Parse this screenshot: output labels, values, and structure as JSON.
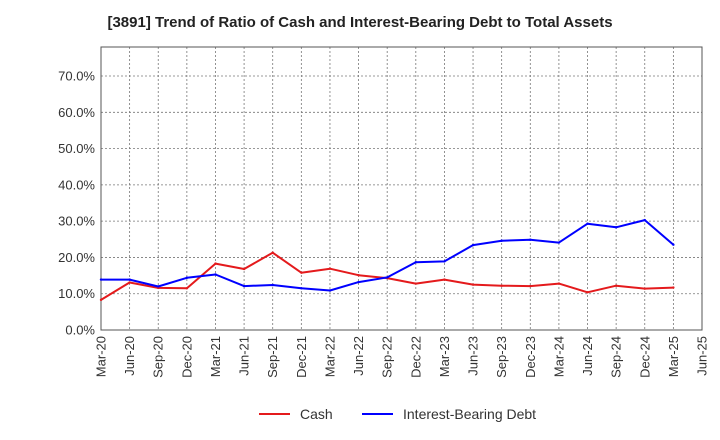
{
  "chart_data": {
    "type": "line",
    "title": "[3891]  Trend of Ratio of Cash and Interest-Bearing Debt to Total Assets",
    "xlabel": "",
    "ylabel": "",
    "x_ticks": [
      "Mar-20",
      "Jun-20",
      "Sep-20",
      "Dec-20",
      "Mar-21",
      "Jun-21",
      "Sep-21",
      "Dec-21",
      "Mar-22",
      "Jun-22",
      "Sep-22",
      "Dec-22",
      "Mar-23",
      "Jun-23",
      "Sep-23",
      "Dec-23",
      "Mar-24",
      "Jun-24",
      "Sep-24",
      "Dec-24",
      "Mar-25",
      "Jun-25"
    ],
    "y_ticks": [
      "0.0%",
      "10.0%",
      "20.0%",
      "30.0%",
      "40.0%",
      "50.0%",
      "60.0%",
      "70.0%"
    ],
    "ylim": [
      0,
      78
    ],
    "grid": true,
    "legend_position": "bottom",
    "categories": [
      "Mar-20",
      "Jun-20",
      "Sep-20",
      "Dec-20",
      "Mar-21",
      "Jun-21",
      "Sep-21",
      "Dec-21",
      "Mar-22",
      "Jun-22",
      "Sep-22",
      "Dec-22",
      "Mar-23",
      "Jun-23",
      "Sep-23",
      "Dec-23",
      "Mar-24",
      "Jun-24",
      "Sep-24",
      "Dec-24",
      "Mar-25"
    ],
    "series": [
      {
        "name": "Cash",
        "color": "#e41a1c",
        "values": [
          8.3,
          13.1,
          11.6,
          11.5,
          18.3,
          16.8,
          21.3,
          15.8,
          16.9,
          15.1,
          14.3,
          12.8,
          13.9,
          12.5,
          12.2,
          12.1,
          12.8,
          10.4,
          12.2,
          11.4,
          11.7
        ]
      },
      {
        "name": "Interest-Bearing Debt",
        "color": "#0000ff",
        "values": [
          13.9,
          13.9,
          12.0,
          14.4,
          15.3,
          12.1,
          12.4,
          11.5,
          10.9,
          13.2,
          14.5,
          18.7,
          18.9,
          23.4,
          24.6,
          24.9,
          24.1,
          29.3,
          28.3,
          30.3,
          23.5
        ]
      }
    ]
  }
}
